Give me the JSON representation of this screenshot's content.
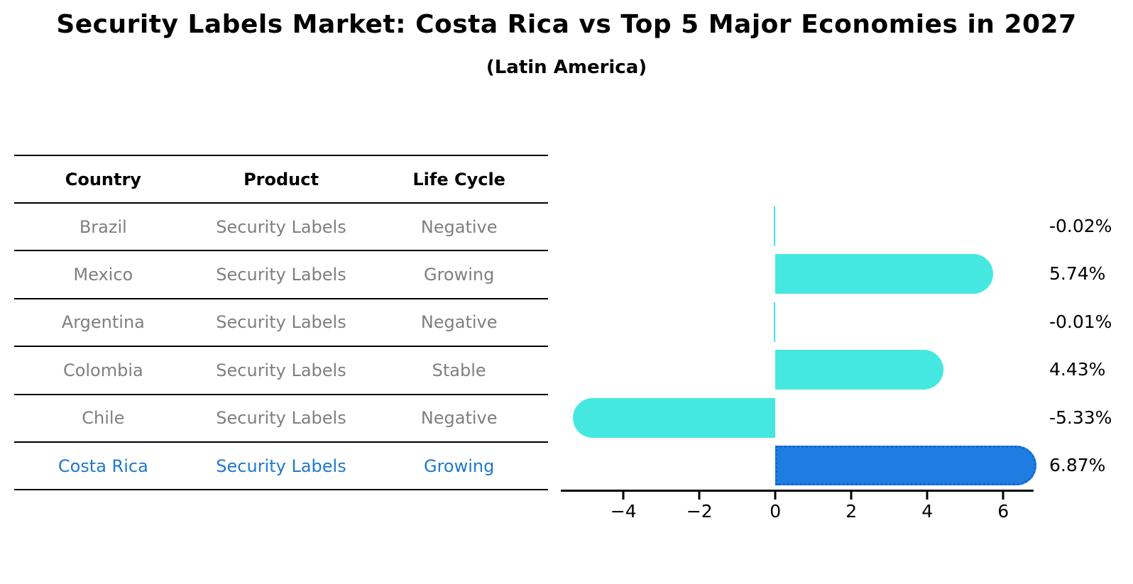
{
  "header": {
    "title": "Security Labels Market: Costa Rica vs Top 5 Major Economies in 2027",
    "subtitle": "(Latin America)"
  },
  "table": {
    "columns": [
      "Country",
      "Product",
      "Life Cycle"
    ],
    "rows": [
      {
        "country": "Brazil",
        "product": "Security Labels",
        "life_cycle": "Negative",
        "highlight": false
      },
      {
        "country": "Mexico",
        "product": "Security Labels",
        "life_cycle": "Growing",
        "highlight": false
      },
      {
        "country": "Argentina",
        "product": "Security Labels",
        "life_cycle": "Negative",
        "highlight": false
      },
      {
        "country": "Colombia",
        "product": "Security Labels",
        "life_cycle": "Stable",
        "highlight": false
      },
      {
        "country": "Chile",
        "product": "Security Labels",
        "life_cycle": "Negative",
        "highlight": false
      },
      {
        "country": "Costa Rica",
        "product": "Security Labels",
        "life_cycle": "Growing",
        "highlight": true
      }
    ]
  },
  "chart_data": {
    "type": "bar",
    "orientation": "horizontal",
    "title": "Security Labels Market: Costa Rica vs Top 5 Major Economies in 2027",
    "subtitle": "(Latin America)",
    "categories": [
      "Brazil",
      "Mexico",
      "Argentina",
      "Colombia",
      "Chile",
      "Costa Rica"
    ],
    "values": [
      -0.02,
      5.74,
      -0.01,
      4.43,
      -5.33,
      6.87
    ],
    "value_labels": [
      "-0.02%",
      "5.74%",
      "-0.01%",
      "4.43%",
      "-5.33%",
      "6.87%"
    ],
    "highlight_index": 5,
    "xlim": [
      -5.65,
      6.8
    ],
    "x_ticks": [
      -4,
      -2,
      0,
      2,
      4,
      6
    ],
    "x_tick_labels": [
      "−4",
      "−2",
      "0",
      "2",
      "4",
      "6"
    ],
    "grid": false,
    "legend": false,
    "colors": {
      "bar": "#45e8e0",
      "highlight_bar": "#1f7de2",
      "highlight_border": "#1566cc",
      "highlight_text": "#1f78cc",
      "table_text": "#7f7f7f",
      "axis": "#000000"
    }
  }
}
